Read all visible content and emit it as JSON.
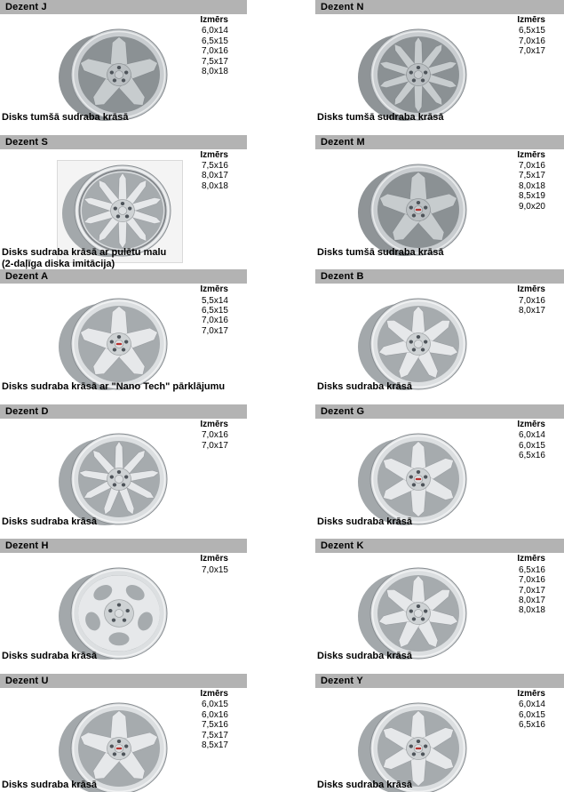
{
  "labels": {
    "sizes": "Izmērs"
  },
  "colors": {
    "page_bg": "#ffffff",
    "header_bar": "#b3b3b3",
    "text": "#000000",
    "logo_red": "#b83230",
    "wheel": {
      "silver": {
        "barrel": "#a3a8ab",
        "face": "#dcdfe1",
        "dish": "#a6abae",
        "spoke": "#e6e8ea",
        "hub": "#ced2d4"
      },
      "dark": {
        "barrel": "#8f9497",
        "face": "#c9cdd0",
        "dish": "#8b9194",
        "spoke": "#c7ccce",
        "hub": "#babfc2"
      }
    }
  },
  "products": [
    {
      "name": "Dezent J",
      "sizes": [
        "6,0x14",
        "6,5x15",
        "7,0x16",
        "7,5x17",
        "8,0x18"
      ],
      "caption_lines": [
        "Disks tumšā sudraba krāsā"
      ],
      "wheel": {
        "icon": "wheel-5-spoke-icon",
        "tone": "dark",
        "style": "spoke",
        "spokes": 5
      }
    },
    {
      "name": "Dezent N",
      "sizes": [
        "6,5x15",
        "7,0x16",
        "7,0x17"
      ],
      "caption_lines": [
        "Disks tumšā sudraba krāsā"
      ],
      "wheel": {
        "icon": "wheel-10-spoke-icon",
        "tone": "dark",
        "style": "spoke",
        "spokes": 10
      }
    },
    {
      "name": "Dezent S",
      "sizes": [
        "7,5x16",
        "8,0x17",
        "8,0x18"
      ],
      "caption_lines": [
        "Disks sudraba krāsā ar pulētu malu",
        "(2-daļīga diska imitācija)"
      ],
      "wheel": {
        "icon": "wheel-10-spoke-polished-lip-icon",
        "tone": "silver",
        "style": "spoke",
        "spokes": 10,
        "framed": true,
        "lip": true
      }
    },
    {
      "name": "Dezent M",
      "sizes": [
        "7,0x16",
        "7,5x17",
        "8,0x18",
        "8,5x19",
        "9,0x20"
      ],
      "caption_lines": [
        "Disks tumšā sudraba krāsā"
      ],
      "wheel": {
        "icon": "wheel-5-spoke-icon",
        "tone": "dark",
        "style": "spoke",
        "spokes": 5,
        "cap": "red"
      }
    },
    {
      "name": "Dezent A",
      "sizes": [
        "5,5x14",
        "6,5x15",
        "7,0x16",
        "7,0x17"
      ],
      "caption_lines": [
        "Disks sudraba krāsā ar \"Nano Tech\" pārklājumu"
      ],
      "wheel": {
        "icon": "wheel-5-spoke-icon",
        "tone": "silver",
        "style": "spoke",
        "spokes": 5,
        "cap": "red"
      }
    },
    {
      "name": "Dezent B",
      "sizes": [
        "7,0x16",
        "8,0x17"
      ],
      "caption_lines": [
        "Disks sudraba krāsā"
      ],
      "wheel": {
        "icon": "wheel-7-spoke-icon",
        "tone": "silver",
        "style": "spoke",
        "spokes": 7
      }
    },
    {
      "name": "Dezent D",
      "sizes": [
        "7,0x16",
        "7,0x17"
      ],
      "caption_lines": [
        "Disks sudraba krāsā"
      ],
      "wheel": {
        "icon": "wheel-9-spoke-icon",
        "tone": "silver",
        "style": "spoke",
        "spokes": 9
      }
    },
    {
      "name": "Dezent G",
      "sizes": [
        "6,0x14",
        "6,0x15",
        "6,5x16"
      ],
      "caption_lines": [
        "Disks sudraba krāsā"
      ],
      "wheel": {
        "icon": "wheel-6-spoke-icon",
        "tone": "silver",
        "style": "spoke",
        "spokes": 6,
        "cap": "red"
      }
    },
    {
      "name": "Dezent H",
      "sizes": [
        "7,0x15"
      ],
      "caption_lines": [
        "Disks sudraba krāsā"
      ],
      "wheel": {
        "icon": "wheel-5-hole-dish-icon",
        "tone": "silver",
        "style": "holes",
        "spokes": 5
      }
    },
    {
      "name": "Dezent K",
      "sizes": [
        "6,5x16",
        "7,0x16",
        "7,0x17",
        "8,0x17",
        "8,0x18"
      ],
      "caption_lines": [
        "Disks sudraba krāsā"
      ],
      "wheel": {
        "icon": "wheel-7-spoke-icon",
        "tone": "silver",
        "style": "spoke",
        "spokes": 7
      }
    },
    {
      "name": "Dezent U",
      "sizes": [
        "6,0x15",
        "6,0x16",
        "7,5x16",
        "7,5x17",
        "8,5x17"
      ],
      "caption_lines": [
        "Disks sudraba krāsā"
      ],
      "wheel": {
        "icon": "wheel-5-spoke-icon",
        "tone": "silver",
        "style": "spoke",
        "spokes": 5,
        "cap": "red"
      }
    },
    {
      "name": "Dezent Y",
      "sizes": [
        "6,0x14",
        "6,0x15",
        "6,5x16"
      ],
      "caption_lines": [
        "Disks sudraba krāsā"
      ],
      "wheel": {
        "icon": "wheel-6-spoke-icon",
        "tone": "silver",
        "style": "spoke",
        "spokes": 6,
        "cap": "red"
      }
    }
  ]
}
